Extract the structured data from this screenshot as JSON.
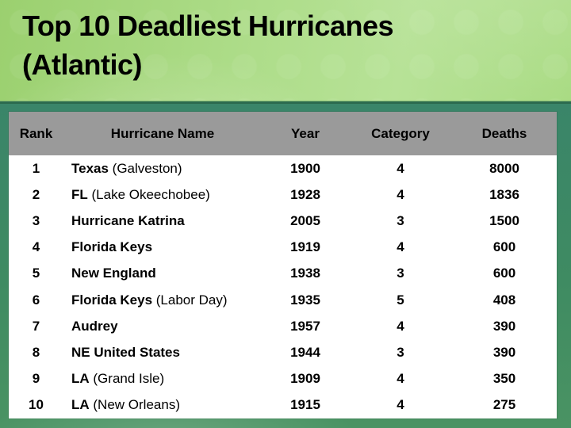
{
  "slide": {
    "title_line1": "Top 10 Deadliest Hurricanes",
    "title_line2": "(Atlantic)"
  },
  "colors": {
    "title_background_green": "#aadb84",
    "title_text": "#000000",
    "body_background_green_top": "#3a8569",
    "body_background_green_bottom": "#4a9363",
    "divider_dark_green": "#2c6b4f",
    "table_header_gray": "#9a9a9a",
    "table_body_white": "#ffffff",
    "table_text": "#000000"
  },
  "table": {
    "headers": [
      "Rank",
      "Hurricane Name",
      "Year",
      "Category",
      "Deaths"
    ],
    "rows": [
      {
        "rank": "1",
        "name_bold": "Texas",
        "name_rest": " (Galveston)",
        "year": "1900",
        "category": "4",
        "deaths": "8000"
      },
      {
        "rank": "2",
        "name_bold": "FL",
        "name_rest": " (Lake Okeechobee)",
        "year": "1928",
        "category": "4",
        "deaths": "1836"
      },
      {
        "rank": "3",
        "name_bold": "Hurricane Katrina",
        "name_rest": "",
        "year": "2005",
        "category": "3",
        "deaths": "1500"
      },
      {
        "rank": "4",
        "name_bold": "Florida Keys",
        "name_rest": "",
        "year": "1919",
        "category": "4",
        "deaths": "600"
      },
      {
        "rank": "5",
        "name_bold": "New England",
        "name_rest": "",
        "year": "1938",
        "category": "3",
        "deaths": "600"
      },
      {
        "rank": "6",
        "name_bold": "Florida Keys",
        "name_rest": " (Labor Day)",
        "year": "1935",
        "category": "5",
        "deaths": "408"
      },
      {
        "rank": "7",
        "name_bold": "Audrey",
        "name_rest": "",
        "year": "1957",
        "category": "4",
        "deaths": "390"
      },
      {
        "rank": "8",
        "name_bold": "NE United States",
        "name_rest": "",
        "year": "1944",
        "category": "3",
        "deaths": "390"
      },
      {
        "rank": "9",
        "name_bold": "LA",
        "name_rest": " (Grand Isle)",
        "year": "1909",
        "category": "4",
        "deaths": "350"
      },
      {
        "rank": "10",
        "name_bold": "LA",
        "name_rest": " (New Orleans)",
        "year": "1915",
        "category": "4",
        "deaths": "275"
      }
    ]
  }
}
